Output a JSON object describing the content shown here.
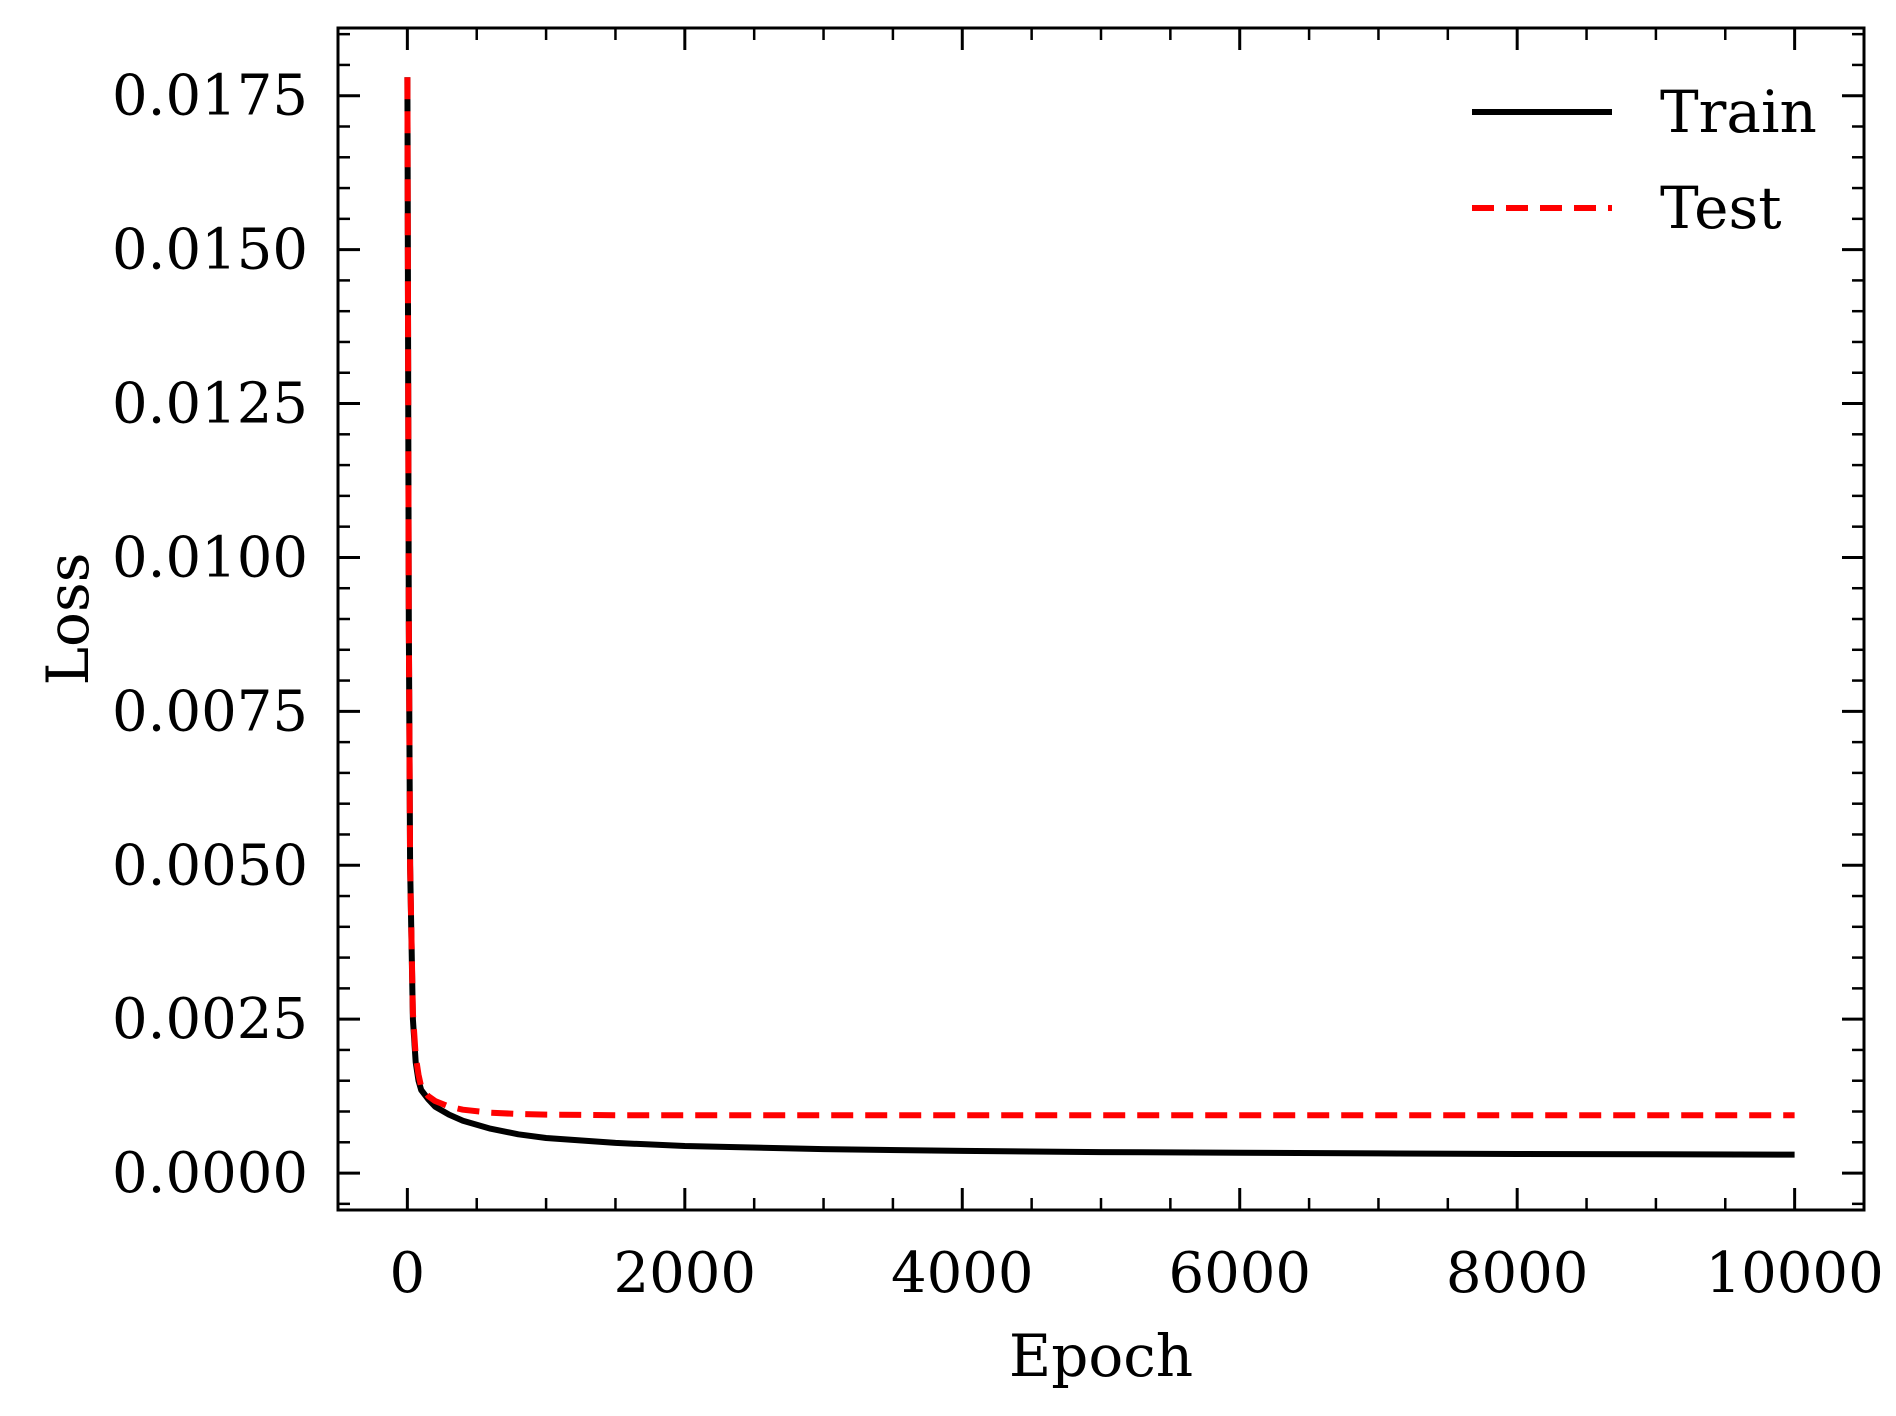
{
  "chart_data": {
    "type": "line",
    "title": "",
    "xlabel": "Epoch",
    "ylabel": "Loss",
    "xlim": [
      -500,
      10500
    ],
    "ylim": [
      -0.0006,
      0.0186
    ],
    "x_ticks": [
      0,
      2000,
      4000,
      6000,
      8000,
      10000
    ],
    "x_tick_labels": [
      "0",
      "2000",
      "4000",
      "6000",
      "8000",
      "10000"
    ],
    "y_ticks": [
      0.0,
      0.0025,
      0.005,
      0.0075,
      0.01,
      0.0125,
      0.015,
      0.0175
    ],
    "y_tick_labels": [
      "0.0000",
      "0.0025",
      "0.0050",
      "0.0075",
      "0.0100",
      "0.0125",
      "0.0150",
      "0.0175"
    ],
    "grid": false,
    "legend": "top-right",
    "series": [
      {
        "name": "Train",
        "color": "#000000",
        "style": "solid",
        "x": [
          0,
          10,
          20,
          40,
          60,
          80,
          100,
          150,
          200,
          300,
          400,
          600,
          800,
          1000,
          1500,
          2000,
          3000,
          4000,
          5000,
          6000,
          7000,
          8000,
          9000,
          10000
        ],
        "y": [
          0.0178,
          0.009,
          0.005,
          0.0025,
          0.0018,
          0.0015,
          0.00135,
          0.0012,
          0.00108,
          0.00095,
          0.00085,
          0.00072,
          0.00063,
          0.00057,
          0.00049,
          0.00044,
          0.00039,
          0.00036,
          0.00034,
          0.00033,
          0.00032,
          0.00031,
          0.000305,
          0.0003
        ]
      },
      {
        "name": "Test",
        "color": "#ff0000",
        "style": "dashed",
        "x": [
          0,
          10,
          20,
          40,
          60,
          80,
          100,
          150,
          200,
          300,
          400,
          600,
          800,
          1000,
          1500,
          2000,
          3000,
          4000,
          5000,
          6000,
          7000,
          8000,
          9000,
          10000
        ],
        "y": [
          0.0178,
          0.009,
          0.005,
          0.0026,
          0.0019,
          0.0016,
          0.0014,
          0.00125,
          0.00117,
          0.00108,
          0.00103,
          0.00098,
          0.00096,
          0.00095,
          0.00094,
          0.00094,
          0.00094,
          0.00094,
          0.00094,
          0.00094,
          0.00094,
          0.00094,
          0.00094,
          0.00094
        ]
      }
    ]
  }
}
